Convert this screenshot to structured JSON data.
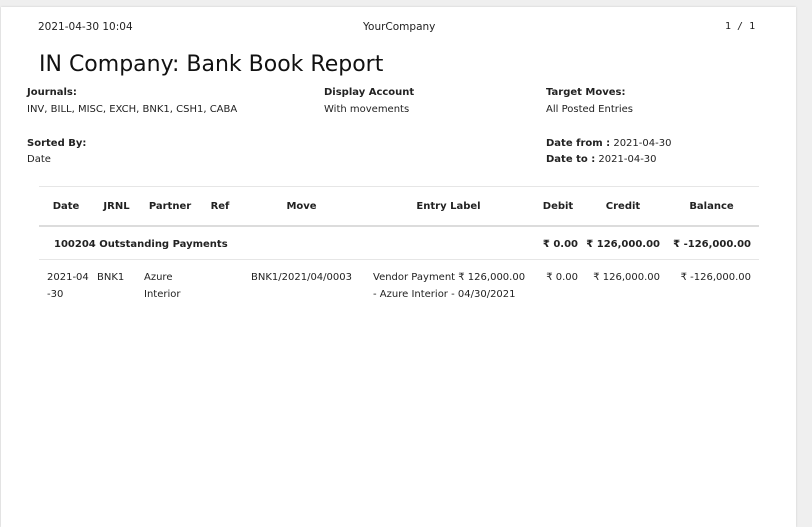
{
  "header": {
    "datetime": "2021-04-30 10:04",
    "company": "YourCompany",
    "page_counter": "1  /  1"
  },
  "title": "IN Company: Bank Book Report",
  "filters": {
    "journals_label": "Journals:",
    "journals_value": "INV, BILL, MISC, EXCH, BNK1, CSH1, CABA",
    "display_account_label": "Display Account",
    "display_account_value": "With movements",
    "target_moves_label": "Target Moves:",
    "target_moves_value": "All Posted Entries",
    "sorted_by_label": "Sorted By:",
    "sorted_by_value": "Date",
    "date_from_label": "Date from :",
    "date_from_value": " 2021-04-30",
    "date_to_label": "Date to :",
    "date_to_value": " 2021-04-30"
  },
  "table": {
    "columns": [
      "Date",
      "JRNL",
      "Partner",
      "Ref",
      "Move",
      "Entry Label",
      "Debit",
      "Credit",
      "Balance"
    ],
    "group": {
      "name": "100204 Outstanding Payments",
      "debit": "₹ 0.00",
      "credit": "₹ 126,000.00",
      "balance": "₹ -126,000.00"
    },
    "rows": [
      {
        "date": "2021-04-30",
        "jrnl": "BNK1",
        "partner": "Azure Interior",
        "ref": "",
        "move": "BNK1/2021/04/0003",
        "label": "Vendor Payment ₹ 126,000.00 - Azure Interior - 04/30/2021",
        "debit": "₹ 0.00",
        "credit": "₹ 126,000.00",
        "balance": "₹ -126,000.00"
      }
    ]
  }
}
